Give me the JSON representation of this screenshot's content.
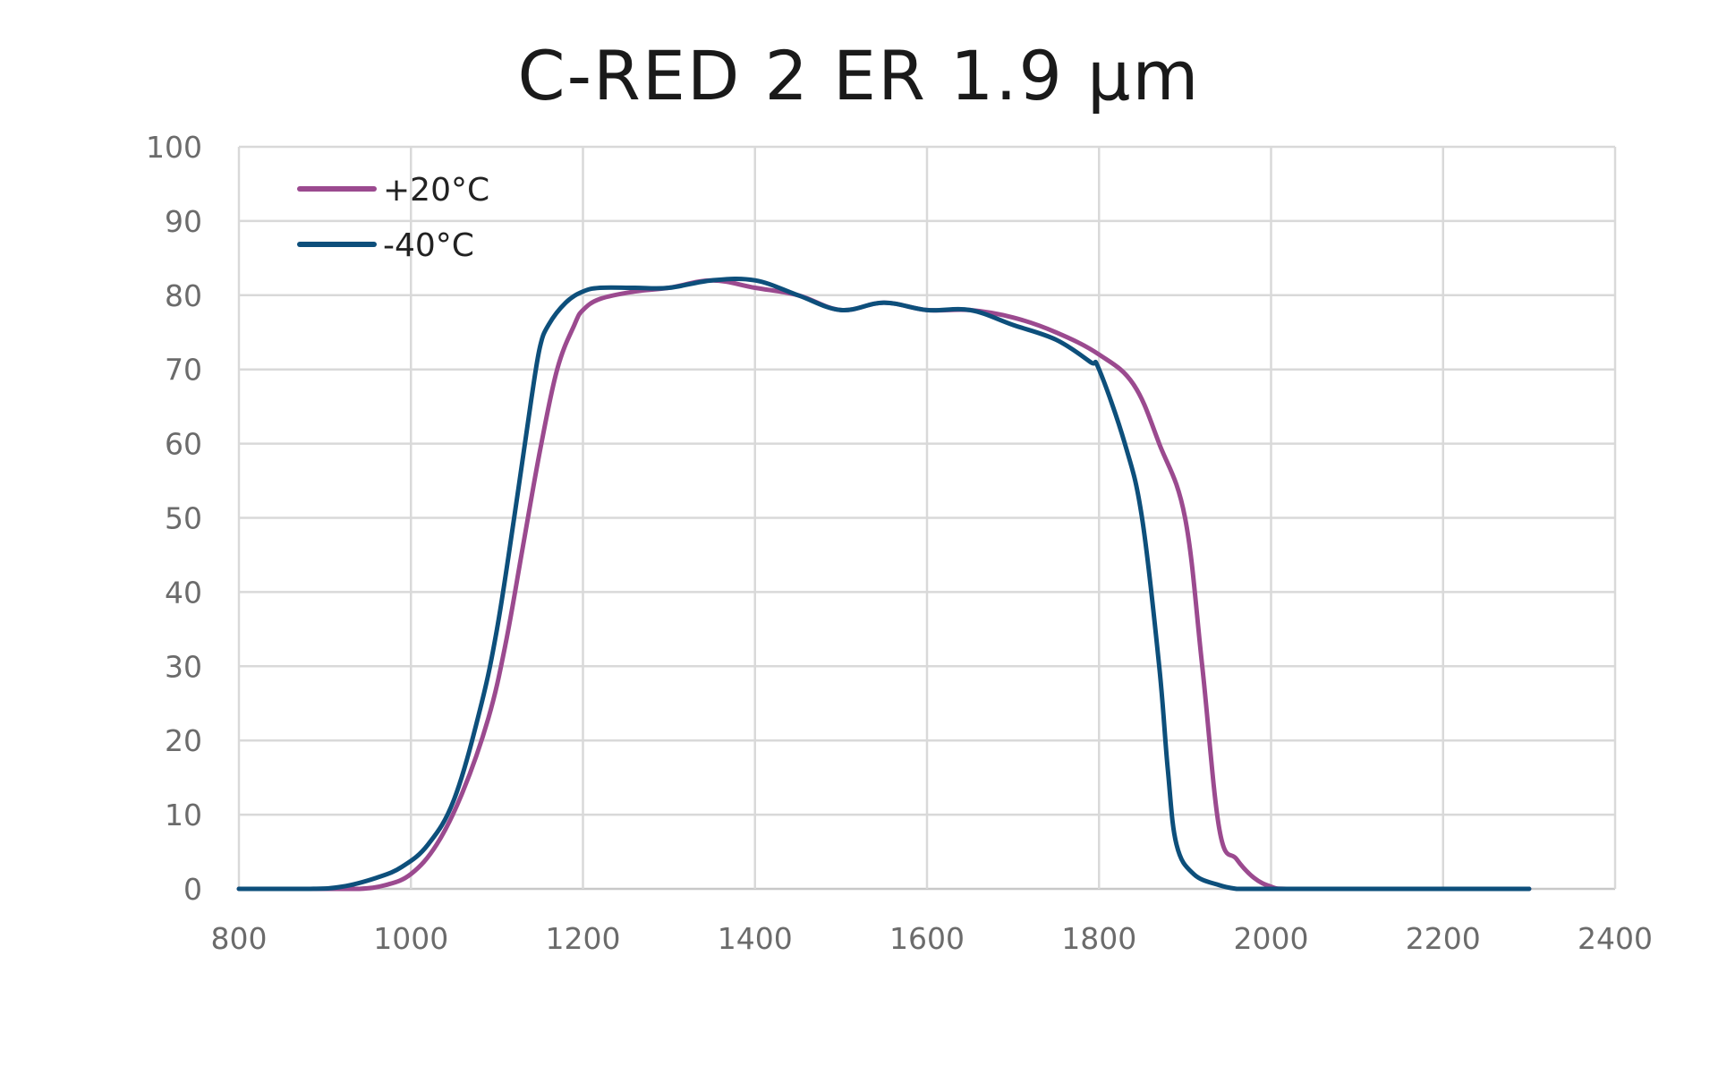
{
  "chart_data": {
    "type": "line",
    "title": "C-RED 2 ER 1.9 µm",
    "xlabel": "",
    "ylabel": "",
    "xlim": [
      800,
      2400
    ],
    "ylim": [
      0,
      100
    ],
    "x_ticks": [
      800,
      1000,
      1200,
      1400,
      1600,
      1800,
      2000,
      2200,
      2400
    ],
    "y_ticks": [
      0,
      10,
      20,
      30,
      40,
      50,
      60,
      70,
      80,
      90,
      100
    ],
    "grid": true,
    "legend_position": "top-left",
    "series": [
      {
        "name": "+20°C",
        "color": "#9b4a8f",
        "x": [
          800,
          900,
          940,
          970,
          1000,
          1030,
          1060,
          1090,
          1110,
          1130,
          1150,
          1170,
          1190,
          1200,
          1220,
          1260,
          1300,
          1350,
          1400,
          1450,
          1500,
          1550,
          1600,
          1650,
          1700,
          1750,
          1800,
          1840,
          1870,
          1900,
          1920,
          1940,
          1960,
          1980,
          2000,
          2020,
          2100,
          2300
        ],
        "y": [
          0,
          0,
          0,
          0.5,
          2,
          6,
          13,
          23,
          33,
          46,
          59,
          70,
          76,
          78,
          79.5,
          80.5,
          81,
          82,
          81,
          80,
          78,
          79,
          78,
          78,
          77,
          75,
          72,
          68,
          60,
          50,
          30,
          8,
          4,
          1.5,
          0.3,
          0,
          0,
          0
        ]
      },
      {
        "name": "-40°C",
        "color": "#0d4f7b",
        "x": [
          800,
          880,
          920,
          960,
          990,
          1020,
          1050,
          1080,
          1100,
          1120,
          1140,
          1150,
          1160,
          1180,
          1200,
          1220,
          1260,
          1300,
          1350,
          1400,
          1450,
          1500,
          1550,
          1600,
          1650,
          1700,
          1750,
          1790,
          1800,
          1830,
          1850,
          1870,
          1880,
          1890,
          1910,
          1940,
          1960,
          1970,
          2000,
          2100,
          2300
        ],
        "y": [
          0,
          0,
          0.3,
          1.5,
          3,
          6,
          12,
          24,
          35,
          50,
          66,
          73,
          76,
          79,
          80.5,
          81,
          81,
          81,
          82,
          82,
          80,
          78,
          79,
          78,
          78,
          76,
          74,
          71,
          70,
          60,
          50,
          30,
          16,
          6,
          2,
          0.5,
          0,
          0,
          0,
          0,
          0
        ]
      }
    ]
  }
}
